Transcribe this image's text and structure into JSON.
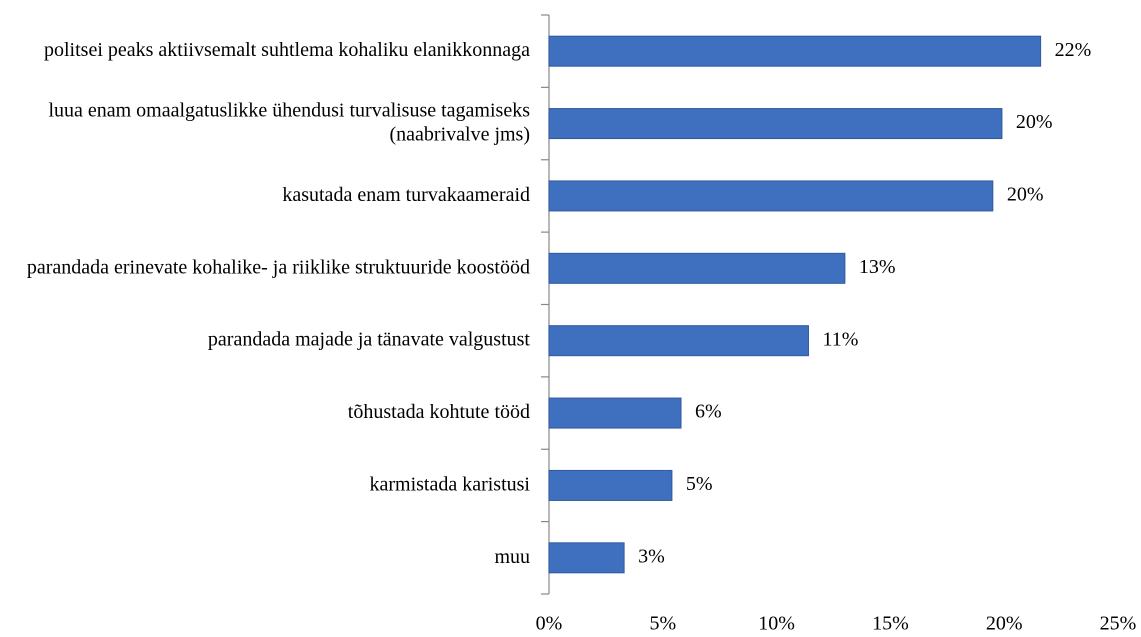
{
  "chart_data": {
    "type": "barh",
    "categories": [
      "politsei peaks aktiivsemalt suhtlema kohaliku elanikkonnaga",
      "luua enam omaalgatuslikke ühendusi turvalisuse tagamiseks (naabrivalve jms)",
      "kasutada enam turvakaameraid",
      "parandada erinevate kohalike- ja riiklike struktuuride koostööd",
      "parandada majade ja tänavate valgustust",
      "tõhustada kohtute tööd",
      "karmistada karistusi",
      "muu"
    ],
    "values": [
      21.6,
      19.9,
      19.5,
      13.0,
      11.4,
      5.8,
      5.4,
      3.3
    ],
    "value_labels": [
      "22%",
      "20%",
      "20%",
      "13%",
      "11%",
      "6%",
      "5%",
      "3%"
    ],
    "color": "#3f6fbf",
    "xlim": [
      0,
      25
    ],
    "xticks": [
      {
        "value": 0,
        "label": "0%"
      },
      {
        "value": 5,
        "label": "5%"
      },
      {
        "value": 10,
        "label": "10%"
      },
      {
        "value": 15,
        "label": "15%"
      },
      {
        "value": 20,
        "label": "20%"
      },
      {
        "value": 25,
        "label": "25%"
      }
    ],
    "grid": false
  }
}
